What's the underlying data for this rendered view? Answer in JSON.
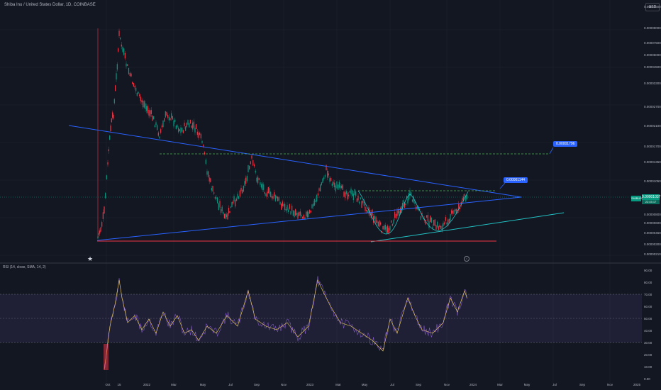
{
  "header": {
    "symbol_title": "Shiba Inu / United States Dollar, 1D, COINBASE",
    "currency": "USD"
  },
  "price_axis": {
    "labels": [
      "0.00010500",
      "0.00009000",
      "0.00007500",
      "0.00006000",
      "0.00004500",
      "0.00003300",
      "0.00002700",
      "0.00002100",
      "0.00001700",
      "0.00001350",
      "0.00001050",
      "0.00000800",
      "0.00000600",
      "0.00000450",
      "0.00000300",
      "0.00000210"
    ]
  },
  "current_price": {
    "value": "0.00001037",
    "countdown": "22:45:17",
    "symbol_tag": "SHIBUSD"
  },
  "targets": {
    "target_1": "0.00001796",
    "target_2": "0.00001144"
  },
  "rsi": {
    "title": "RSI (14, close, SMA, 14, 2)",
    "axis_labels": [
      "90.00",
      "80.00",
      "70.00",
      "60.00",
      "50.00",
      "40.00",
      "30.00",
      "20.00",
      "10.00",
      "0.00"
    ],
    "upper_band": 70,
    "lower_band": 30
  },
  "time_axis": {
    "labels": [
      "Oct",
      "15",
      "2022",
      "Mar",
      "May",
      "Jul",
      "Sep",
      "Nov",
      "2023",
      "Mar",
      "May",
      "Jul",
      "Sep",
      "Nov",
      "2024",
      "Mar",
      "May",
      "Jul",
      "Sep",
      "Nov",
      "2025"
    ]
  },
  "colors": {
    "background": "#131722",
    "trendline": "#2962ff",
    "support_teal": "#22c1c3",
    "base_red": "#f23645",
    "target_dash": "#4caf50",
    "rsi_line": "#7e57c2",
    "rsi_ma": "#f4d35e",
    "rsi_band": "#7e57c2"
  },
  "icons": {
    "logo": "tradingview-logo-icon",
    "replay": "circle-marker-icon"
  }
}
